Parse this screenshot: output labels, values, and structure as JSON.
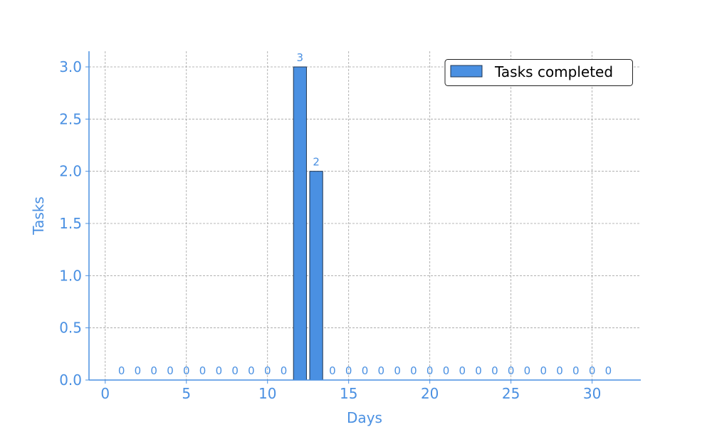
{
  "chart_data": {
    "type": "bar",
    "x": [
      1,
      2,
      3,
      4,
      5,
      6,
      7,
      8,
      9,
      10,
      11,
      12,
      13,
      14,
      15,
      16,
      17,
      18,
      19,
      20,
      21,
      22,
      23,
      24,
      25,
      26,
      27,
      28,
      29,
      30,
      31
    ],
    "series": [
      {
        "name": "Tasks completed",
        "values": [
          0,
          0,
          0,
          0,
          0,
          0,
          0,
          0,
          0,
          0,
          0,
          3,
          2,
          0,
          0,
          0,
          0,
          0,
          0,
          0,
          0,
          0,
          0,
          0,
          0,
          0,
          0,
          0,
          0,
          0,
          0
        ]
      }
    ],
    "data_labels": [
      "0",
      "0",
      "0",
      "0",
      "0",
      "0",
      "0",
      "0",
      "0",
      "0",
      "0",
      "3",
      "2",
      "0",
      "0",
      "0",
      "0",
      "0",
      "0",
      "0",
      "0",
      "0",
      "0",
      "0",
      "0",
      "0",
      "0",
      "0",
      "0",
      "0",
      "0"
    ],
    "xlabel": "Days",
    "ylabel": "Tasks",
    "xlim": [
      -1,
      33
    ],
    "ylim": [
      0,
      3.15
    ],
    "xticks": [
      0,
      5,
      10,
      15,
      20,
      25,
      30
    ],
    "xtick_labels": [
      "0",
      "5",
      "10",
      "15",
      "20",
      "25",
      "30"
    ],
    "yticks": [
      0,
      0.5,
      1,
      1.5,
      2,
      2.5,
      3
    ],
    "ytick_labels": [
      "0.0",
      "0.5",
      "1.0",
      "1.5",
      "2.0",
      "2.5",
      "3.0"
    ],
    "grid": true,
    "legend_position": "top-right",
    "colors": {
      "bar": "#4a90e2",
      "bar_edge": "#1f3550",
      "axis": "#4a90e2",
      "text": "#4a90e2",
      "grid": "#a0a0a0"
    }
  }
}
